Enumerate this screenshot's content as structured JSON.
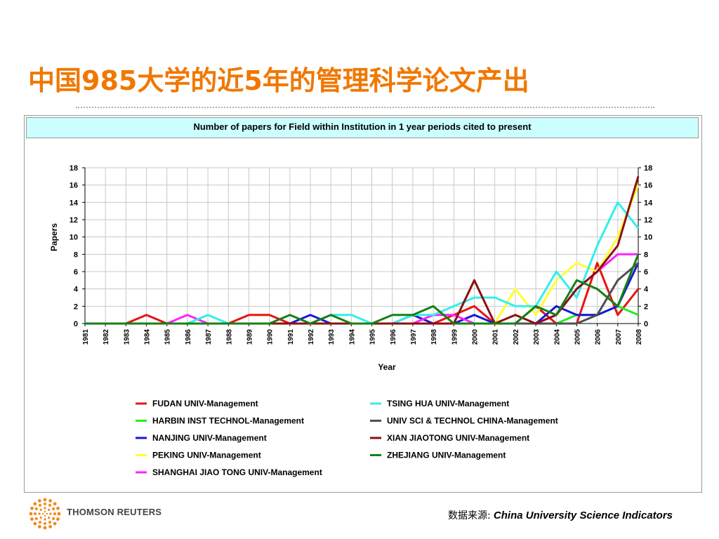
{
  "slide": {
    "title": "中国985大学的近5年的管理科学论文产出",
    "source_label": "数据来源:",
    "source_value": "China University Science Indicators",
    "brand": "THOMSON REUTERS"
  },
  "chart_data": {
    "type": "line",
    "title": "Number of papers for Field within Institution in 1 year periods cited to present",
    "xlabel": "Year",
    "ylabel": "Papers",
    "ylim": [
      0,
      18
    ],
    "yticks": [
      0,
      2,
      4,
      6,
      8,
      10,
      12,
      14,
      16,
      18
    ],
    "grid": true,
    "legend_placement": "bottom",
    "x": [
      "1981",
      "1982",
      "1983",
      "1984",
      "1985",
      "1986",
      "1987",
      "1988",
      "1989",
      "1990",
      "1991",
      "1992",
      "1993",
      "1994",
      "1995",
      "1996",
      "1997",
      "1998",
      "1999",
      "2000",
      "2001",
      "2002",
      "2003",
      "2004",
      "2005",
      "2006",
      "2007",
      "2008"
    ],
    "series": [
      {
        "name": "FUDAN UNIV-Management",
        "color": "#e51414",
        "values": [
          0,
          0,
          0,
          1,
          0,
          0,
          0,
          0,
          1,
          1,
          0,
          0,
          0,
          0,
          0,
          0,
          0,
          0,
          1,
          2,
          0,
          0,
          2,
          0,
          0,
          7,
          1,
          4
        ]
      },
      {
        "name": "HARBIN INST TECHNOL-Management",
        "color": "#22ee22",
        "values": [
          0,
          0,
          0,
          0,
          0,
          0,
          0,
          0,
          0,
          0,
          0,
          0,
          0,
          0,
          0,
          0,
          0,
          0,
          0,
          0,
          0,
          0,
          0,
          0,
          1,
          1,
          2,
          1
        ]
      },
      {
        "name": "NANJING UNIV-Management",
        "color": "#1818d8",
        "values": [
          0,
          0,
          0,
          0,
          0,
          0,
          0,
          0,
          0,
          0,
          0,
          1,
          0,
          0,
          0,
          0,
          1,
          0,
          0,
          1,
          0,
          0,
          0,
          2,
          1,
          1,
          2,
          7
        ]
      },
      {
        "name": "PEKING UNIV-Management",
        "color": "#ffff33",
        "values": [
          0,
          0,
          0,
          0,
          0,
          0,
          0,
          0,
          0,
          0,
          0,
          0,
          0,
          0,
          0,
          0,
          0,
          0,
          0,
          0,
          0,
          4,
          1,
          5,
          7,
          6,
          10,
          16
        ]
      },
      {
        "name": "SHANGHAI JIAO TONG UNIV-Management",
        "color": "#ff22ff",
        "values": [
          0,
          0,
          0,
          0,
          0,
          1,
          0,
          0,
          0,
          0,
          0,
          0,
          0,
          0,
          0,
          0,
          0,
          1,
          1,
          0,
          0,
          0,
          0,
          1,
          4,
          6,
          8,
          8
        ]
      },
      {
        "name": "TSING HUA UNIV-Management",
        "color": "#33eeee",
        "values": [
          0,
          0,
          0,
          0,
          0,
          0,
          1,
          0,
          0,
          0,
          0,
          0,
          1,
          1,
          0,
          0,
          1,
          1,
          2,
          3,
          3,
          2,
          2,
          6,
          3,
          9,
          14,
          11
        ]
      },
      {
        "name": "UNIV SCI & TECHNOL CHINA-Management",
        "color": "#505050",
        "values": [
          0,
          0,
          0,
          0,
          0,
          0,
          0,
          0,
          0,
          0,
          0,
          0,
          0,
          0,
          0,
          0,
          0,
          0,
          0,
          0,
          0,
          0,
          0,
          0,
          0,
          1,
          5,
          7
        ]
      },
      {
        "name": "XIAN JIAOTONG UNIV-Management",
        "color": "#8b1010",
        "values": [
          0,
          0,
          0,
          0,
          0,
          0,
          0,
          0,
          0,
          0,
          0,
          0,
          0,
          0,
          0,
          0,
          0,
          0,
          0,
          5,
          0,
          1,
          0,
          1,
          4,
          6,
          9,
          17
        ]
      },
      {
        "name": "ZHEJIANG UNIV-Management",
        "color": "#158015",
        "values": [
          0,
          0,
          0,
          0,
          0,
          0,
          0,
          0,
          0,
          0,
          1,
          0,
          1,
          0,
          0,
          1,
          1,
          2,
          0,
          0,
          0,
          0,
          2,
          1,
          5,
          4,
          2,
          8
        ]
      }
    ]
  }
}
